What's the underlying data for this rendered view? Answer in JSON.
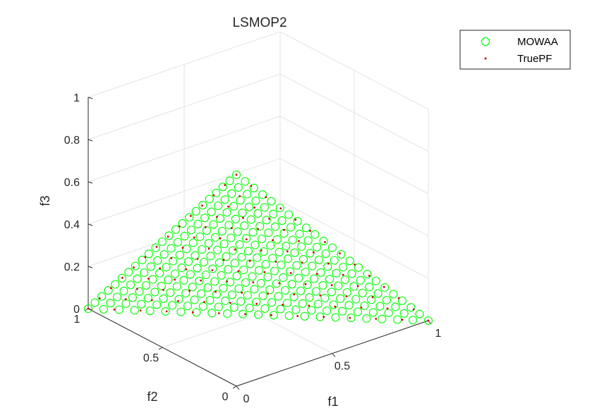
{
  "chart_data": {
    "type": "scatter3d",
    "title": "LSMOP2",
    "xlabel": "f1",
    "ylabel": "f2",
    "zlabel": "f3",
    "xlim": [
      0,
      1
    ],
    "ylim": [
      0,
      1
    ],
    "zlim": [
      0,
      1
    ],
    "x_ticks": [
      "0",
      "0.5",
      "1"
    ],
    "y_ticks": [
      "0",
      "0.5",
      "1"
    ],
    "z_ticks": [
      "0",
      "0.2",
      "0.4",
      "0.6",
      "0.8",
      "1"
    ],
    "grid": true,
    "legend_position": "top-right",
    "series": [
      {
        "name": "MOWAA",
        "marker": "open-circle",
        "color": "#00ff00",
        "surface": "f1 + f2 + f3 = 1",
        "grid_divisions": 22
      },
      {
        "name": "TruePF",
        "marker": "dot",
        "color": "#cc0000",
        "surface": "f1 + f2 + f3 = 1",
        "grid_divisions": 13
      }
    ]
  }
}
